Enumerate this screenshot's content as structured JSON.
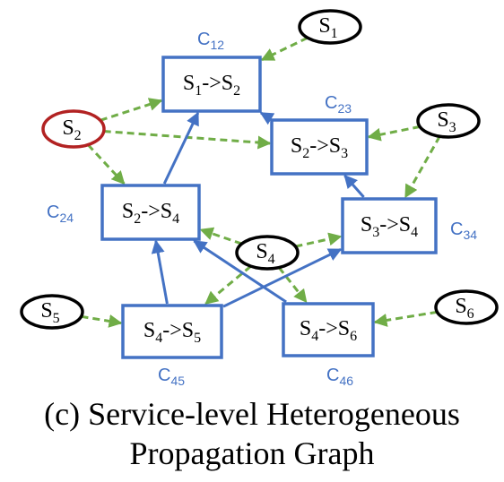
{
  "caption": {
    "line1": "(c) Service-level Heterogeneous",
    "line2": "Propagation Graph"
  },
  "service_nodes": [
    {
      "id": "S1",
      "base": "S",
      "sub": "1"
    },
    {
      "id": "S2",
      "base": "S",
      "sub": "2",
      "highlight": "#b22222"
    },
    {
      "id": "S3",
      "base": "S",
      "sub": "3"
    },
    {
      "id": "S4",
      "base": "S",
      "sub": "4"
    },
    {
      "id": "S5",
      "base": "S",
      "sub": "5"
    },
    {
      "id": "S6",
      "base": "S",
      "sub": "6"
    }
  ],
  "call_nodes": [
    {
      "id": "C12",
      "from": "S1",
      "to": "S2",
      "label": "C",
      "label_sub": "12"
    },
    {
      "id": "C23",
      "from": "S2",
      "to": "S3",
      "label": "C",
      "label_sub": "23"
    },
    {
      "id": "C24",
      "from": "S2",
      "to": "S4",
      "label": "C",
      "label_sub": "24"
    },
    {
      "id": "C34",
      "from": "S3",
      "to": "S4",
      "label": "C",
      "label_sub": "34"
    },
    {
      "id": "C45",
      "from": "S4",
      "to": "S5",
      "label": "C",
      "label_sub": "45"
    },
    {
      "id": "C46",
      "from": "S4",
      "to": "S6",
      "label": "C",
      "label_sub": "46"
    }
  ],
  "call_edges": [
    {
      "from": "C23",
      "to": "C12"
    },
    {
      "from": "C24",
      "to": "C12"
    },
    {
      "from": "C34",
      "to": "C23"
    },
    {
      "from": "C45",
      "to": "C24"
    },
    {
      "from": "C46",
      "to": "C24"
    },
    {
      "from": "C45",
      "to": "C34"
    }
  ],
  "service_edges": [
    {
      "from": "S1",
      "to": "C12"
    },
    {
      "from": "S2",
      "to": "C12"
    },
    {
      "from": "S2",
      "to": "C23"
    },
    {
      "from": "S2",
      "to": "C24"
    },
    {
      "from": "S3",
      "to": "C23"
    },
    {
      "from": "S3",
      "to": "C34"
    },
    {
      "from": "S4",
      "to": "C24"
    },
    {
      "from": "S4",
      "to": "C34"
    },
    {
      "from": "S4",
      "to": "C45"
    },
    {
      "from": "S4",
      "to": "C46"
    },
    {
      "from": "S5",
      "to": "C45"
    },
    {
      "from": "S6",
      "to": "C46"
    }
  ],
  "colors": {
    "call_node": "#4472c4",
    "call_edge": "#4472c4",
    "service_edge": "#70ad47",
    "service_node": "#000000",
    "highlight": "#b22222"
  },
  "edge_styles": {
    "call_edge": "solid",
    "service_edge": "dashed"
  }
}
